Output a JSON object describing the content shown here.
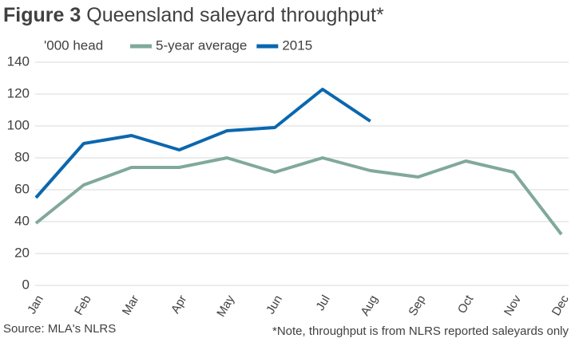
{
  "chart_data": {
    "type": "line",
    "title_prefix": "Figure 3",
    "title": "Queensland saleyard throughput*",
    "y_axis_label": "'000 head",
    "categories": [
      "Jan",
      "Feb",
      "Mar",
      "Apr",
      "May",
      "Jun",
      "Jul",
      "Aug",
      "Sep",
      "Oct",
      "Nov",
      "Dec"
    ],
    "series": [
      {
        "name": "5-year average",
        "color": "#80a99a",
        "values": [
          39,
          63,
          74,
          74,
          80,
          71,
          80,
          72,
          68,
          78,
          71,
          32
        ]
      },
      {
        "name": "2015",
        "color": "#0b67ae",
        "values": [
          55,
          89,
          94,
          85,
          97,
          99,
          123,
          103,
          null,
          null,
          null,
          null
        ]
      }
    ],
    "ylim": [
      0,
      140
    ],
    "yticks": [
      0,
      20,
      40,
      60,
      80,
      100,
      120,
      140
    ],
    "grid": true,
    "legend": "top",
    "source": "Source: MLA's NLRS",
    "note": "*Note, throughput is from NLRS reported saleyards only"
  }
}
